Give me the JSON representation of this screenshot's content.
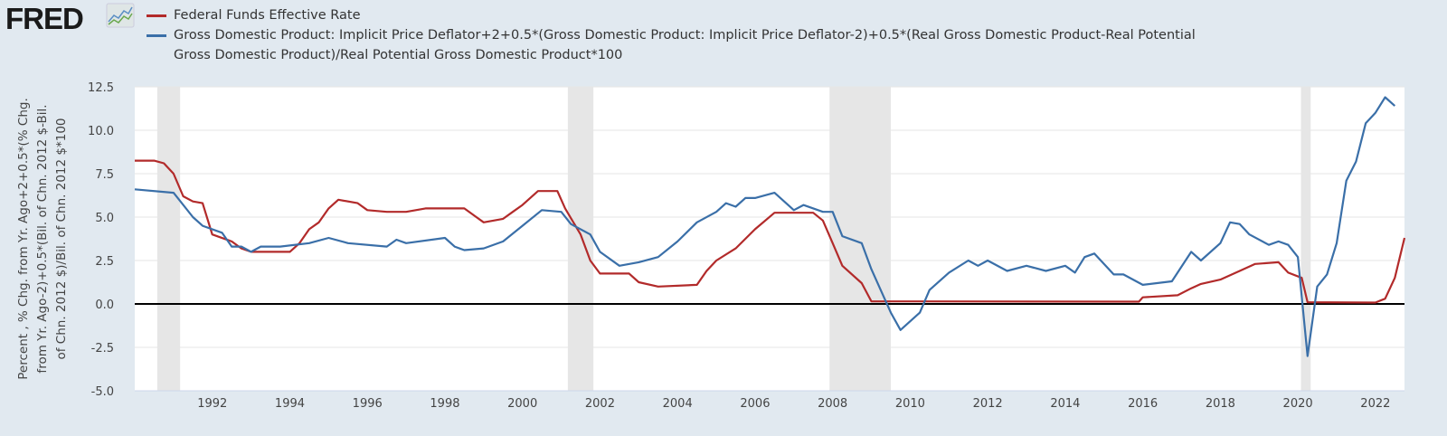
{
  "logo": "FRED",
  "chart_data": {
    "type": "line",
    "ylabel": "Percent , % Chg. from Yr. Ago+2+0.5*(% Chg. from Yr. Ago-2)+0.5*(Bil. of Chn. 2012 $-Bil. of Chn. 2012 $)/Bil. of Chn. 2012 $*100",
    "ylabel_lines": [
      "Percent , % Chg. from Yr. Ago+2+0.5*(% Chg.",
      "from Yr. Ago-2)+0.5*(Bil. of Chn. 2012 $-Bil.",
      "of Chn. 2012 $)/Bil. of Chn. 2012 $*100"
    ],
    "xlim": [
      1990.0,
      2022.75
    ],
    "ylim": [
      -5,
      12.5
    ],
    "yticks": [
      "12.5",
      "10.0",
      "7.5",
      "5.0",
      "2.5",
      "0.0",
      "-2.5",
      "-5.0"
    ],
    "xticks": [
      "1992",
      "1994",
      "1996",
      "1998",
      "2000",
      "2002",
      "2004",
      "2006",
      "2008",
      "2010",
      "2012",
      "2014",
      "2016",
      "2018",
      "2020",
      "2022"
    ],
    "grid": true,
    "legend_placement": "top",
    "recessions": [
      [
        1990.58,
        1991.17
      ],
      [
        2001.17,
        2001.83
      ],
      [
        2007.92,
        2009.5
      ],
      [
        2020.08,
        2020.33
      ]
    ],
    "series": [
      {
        "name": "Federal Funds Effective Rate",
        "color": "#b22a2a",
        "points": [
          [
            1990,
            8.25
          ],
          [
            1990.5,
            8.25
          ],
          [
            1990.75,
            8.1
          ],
          [
            1991,
            7.5
          ],
          [
            1991.25,
            6.2
          ],
          [
            1991.5,
            5.9
          ],
          [
            1991.75,
            5.8
          ],
          [
            1992,
            4.0
          ],
          [
            1992.5,
            3.6
          ],
          [
            1992.75,
            3.2
          ],
          [
            1993,
            3.0
          ],
          [
            1994,
            3.0
          ],
          [
            1994.25,
            3.5
          ],
          [
            1994.5,
            4.3
          ],
          [
            1994.75,
            4.7
          ],
          [
            1995,
            5.5
          ],
          [
            1995.25,
            6.0
          ],
          [
            1995.75,
            5.8
          ],
          [
            1996,
            5.4
          ],
          [
            1996.5,
            5.3
          ],
          [
            1997,
            5.3
          ],
          [
            1997.5,
            5.5
          ],
          [
            1998.5,
            5.5
          ],
          [
            1998.75,
            5.1
          ],
          [
            1999,
            4.7
          ],
          [
            1999.5,
            4.9
          ],
          [
            1999.75,
            5.3
          ],
          [
            2000,
            5.7
          ],
          [
            2000.4,
            6.5
          ],
          [
            2000.9,
            6.5
          ],
          [
            2001.1,
            5.5
          ],
          [
            2001.5,
            4.0
          ],
          [
            2001.75,
            2.5
          ],
          [
            2002,
            1.75
          ],
          [
            2002.75,
            1.75
          ],
          [
            2003,
            1.25
          ],
          [
            2003.5,
            1.0
          ],
          [
            2004.5,
            1.1
          ],
          [
            2004.75,
            1.9
          ],
          [
            2005,
            2.5
          ],
          [
            2005.5,
            3.2
          ],
          [
            2006,
            4.3
          ],
          [
            2006.5,
            5.25
          ],
          [
            2007.5,
            5.25
          ],
          [
            2007.75,
            4.8
          ],
          [
            2008,
            3.5
          ],
          [
            2008.25,
            2.2
          ],
          [
            2008.75,
            1.2
          ],
          [
            2009,
            0.15
          ],
          [
            2015.9,
            0.13
          ],
          [
            2016,
            0.38
          ],
          [
            2016.9,
            0.5
          ],
          [
            2017.25,
            0.9
          ],
          [
            2017.5,
            1.15
          ],
          [
            2018,
            1.4
          ],
          [
            2018.5,
            1.9
          ],
          [
            2018.9,
            2.3
          ],
          [
            2019.5,
            2.4
          ],
          [
            2019.75,
            1.8
          ],
          [
            2020.1,
            1.5
          ],
          [
            2020.25,
            0.1
          ],
          [
            2022,
            0.08
          ],
          [
            2022.25,
            0.3
          ],
          [
            2022.5,
            1.5
          ],
          [
            2022.75,
            3.8
          ]
        ]
      },
      {
        "name": "Gross Domestic Product: Implicit Price Deflator+2+0.5*(Gross Domestic Product: Implicit Price Deflator-2)+0.5*(Real Gross Domestic Product-Real Potential Gross Domestic Product)/Real Potential Gross Domestic Product*100",
        "color": "#3a6fa8",
        "legend_lines": [
          "Gross Domestic Product: Implicit Price Deflator+2+0.5*(Gross Domestic Product: Implicit Price Deflator-2)+0.5*(Real Gross Domestic Product-Real Potential",
          "Gross Domestic Product)/Real Potential Gross Domestic Product*100"
        ],
        "points": [
          [
            1990,
            6.6
          ],
          [
            1991,
            6.4
          ],
          [
            1991.5,
            5.0
          ],
          [
            1991.75,
            4.5
          ],
          [
            1992.25,
            4.1
          ],
          [
            1992.5,
            3.3
          ],
          [
            1992.75,
            3.3
          ],
          [
            1993,
            3.0
          ],
          [
            1993.25,
            3.3
          ],
          [
            1993.75,
            3.3
          ],
          [
            1994.5,
            3.5
          ],
          [
            1995,
            3.8
          ],
          [
            1995.5,
            3.5
          ],
          [
            1996.5,
            3.3
          ],
          [
            1996.75,
            3.7
          ],
          [
            1997,
            3.5
          ],
          [
            1998,
            3.8
          ],
          [
            1998.25,
            3.3
          ],
          [
            1998.5,
            3.1
          ],
          [
            1999,
            3.2
          ],
          [
            1999.5,
            3.6
          ],
          [
            2000,
            4.5
          ],
          [
            2000.5,
            5.4
          ],
          [
            2001,
            5.3
          ],
          [
            2001.25,
            4.6
          ],
          [
            2001.75,
            4.0
          ],
          [
            2002,
            3.0
          ],
          [
            2002.5,
            2.2
          ],
          [
            2003,
            2.4
          ],
          [
            2003.5,
            2.7
          ],
          [
            2004,
            3.6
          ],
          [
            2004.5,
            4.7
          ],
          [
            2005,
            5.3
          ],
          [
            2005.25,
            5.8
          ],
          [
            2005.5,
            5.6
          ],
          [
            2005.75,
            6.1
          ],
          [
            2006,
            6.1
          ],
          [
            2006.5,
            6.4
          ],
          [
            2007,
            5.4
          ],
          [
            2007.25,
            5.7
          ],
          [
            2007.75,
            5.3
          ],
          [
            2008,
            5.3
          ],
          [
            2008.25,
            3.9
          ],
          [
            2008.75,
            3.5
          ],
          [
            2009,
            2.0
          ],
          [
            2009.5,
            -0.5
          ],
          [
            2009.75,
            -1.5
          ],
          [
            2010.25,
            -0.5
          ],
          [
            2010.5,
            0.8
          ],
          [
            2011,
            1.8
          ],
          [
            2011.5,
            2.5
          ],
          [
            2011.75,
            2.2
          ],
          [
            2012,
            2.5
          ],
          [
            2012.5,
            1.9
          ],
          [
            2013,
            2.2
          ],
          [
            2013.5,
            1.9
          ],
          [
            2014,
            2.2
          ],
          [
            2014.25,
            1.8
          ],
          [
            2014.5,
            2.7
          ],
          [
            2014.75,
            2.9
          ],
          [
            2015.25,
            1.7
          ],
          [
            2015.5,
            1.7
          ],
          [
            2016,
            1.1
          ],
          [
            2016.75,
            1.3
          ],
          [
            2017.25,
            3.0
          ],
          [
            2017.5,
            2.5
          ],
          [
            2018,
            3.5
          ],
          [
            2018.25,
            4.7
          ],
          [
            2018.5,
            4.6
          ],
          [
            2018.75,
            4.0
          ],
          [
            2019.25,
            3.4
          ],
          [
            2019.5,
            3.6
          ],
          [
            2019.75,
            3.4
          ],
          [
            2020,
            2.7
          ],
          [
            2020.25,
            -3.0
          ],
          [
            2020.5,
            1.0
          ],
          [
            2020.75,
            1.7
          ],
          [
            2021,
            3.5
          ],
          [
            2021.25,
            7.1
          ],
          [
            2021.5,
            8.2
          ],
          [
            2021.75,
            10.4
          ],
          [
            2022,
            11.0
          ],
          [
            2022.25,
            11.9
          ],
          [
            2022.5,
            11.4
          ]
        ]
      }
    ]
  }
}
